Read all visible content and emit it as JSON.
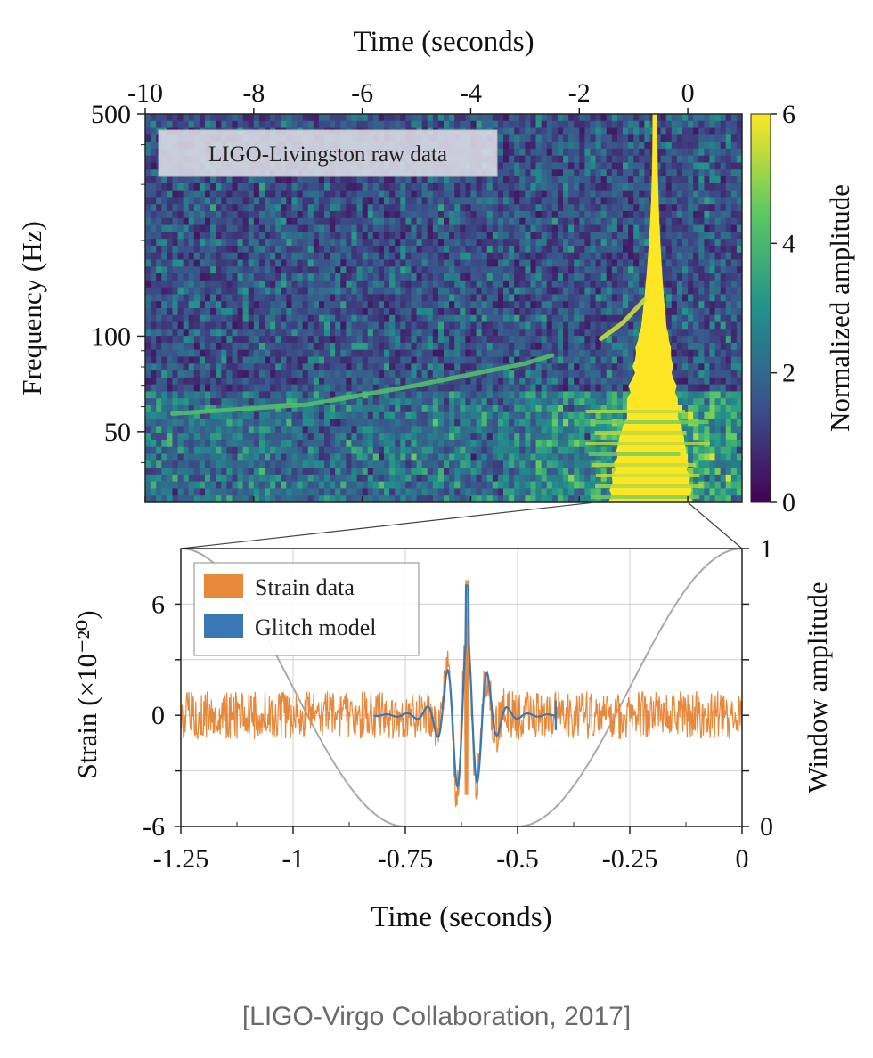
{
  "caption": "[LIGO-Virgo Collaboration, 2017]",
  "chart_data": [
    {
      "type": "heatmap",
      "title": "LIGO-Livingston raw data",
      "xlabel": "Time (seconds)",
      "ylabel": "Frequency (Hz)",
      "xlim": [
        -10,
        1
      ],
      "ylim": [
        30,
        500
      ],
      "yscale": "log",
      "x_ticks": [
        -10,
        -8,
        -6,
        -4,
        -2,
        0
      ],
      "x_tick_labels": [
        "-10",
        "-8",
        "-6",
        "-4",
        "-2",
        "0"
      ],
      "y_ticks": [
        50,
        100,
        500
      ],
      "y_tick_labels": [
        "50",
        "100",
        "500"
      ],
      "colorbar": {
        "label": "Normalized amplitude",
        "range": [
          0,
          6
        ],
        "ticks": [
          0,
          2,
          4,
          6
        ],
        "tick_labels": [
          "0",
          "2",
          "4",
          "6"
        ],
        "colors": [
          "#440154",
          "#3b528b",
          "#21918c",
          "#5ec962",
          "#fde725"
        ]
      },
      "features": [
        {
          "name": "glitch-spike",
          "time": -0.6,
          "freq_range": [
            30,
            500
          ],
          "amplitude": 6
        },
        {
          "name": "chirp-track",
          "points": [
            [
              -9.5,
              57
            ],
            [
              -7,
              61
            ],
            [
              -5,
              70
            ],
            [
              -3,
              82
            ],
            [
              -2.5,
              87
            ]
          ],
          "amplitude": 4.2
        },
        {
          "name": "chirp-tail",
          "points": [
            [
              -1.6,
              98
            ],
            [
              -1.2,
              110
            ],
            [
              -0.8,
              130
            ]
          ],
          "amplitude": 5.5
        }
      ]
    },
    {
      "type": "line",
      "xlabel": "Time (seconds)",
      "ylabel": "Strain (×10⁻²⁰)",
      "y2label": "Window amplitude",
      "xlim": [
        -1.25,
        0
      ],
      "ylim": [
        -6,
        9
      ],
      "y2lim": [
        0,
        1
      ],
      "x_ticks": [
        -1.25,
        -1,
        -0.75,
        -0.5,
        -0.25,
        0
      ],
      "x_tick_labels": [
        "-1.25",
        "-1",
        "-0.75",
        "-0.5",
        "-0.25",
        "0"
      ],
      "y_ticks": [
        -6,
        0,
        6
      ],
      "y_tick_labels": [
        "-6",
        "0",
        "6"
      ],
      "y2_ticks": [
        0,
        1
      ],
      "y2_tick_labels": [
        "0",
        "1"
      ],
      "legend": {
        "position": "top-left",
        "entries": [
          "Strain data",
          "Glitch model"
        ]
      },
      "series": [
        {
          "name": "Strain data",
          "color": "#e8883a",
          "kind": "noise",
          "noise_band": [
            -1.3,
            1.3
          ],
          "burst_center": -0.613,
          "burst_peak": 7.3,
          "burst_trough": -4.3
        },
        {
          "name": "Glitch model",
          "color": "#3a78b5",
          "kind": "wavelet",
          "t_start": -0.82,
          "t_end": -0.415,
          "center": -0.612,
          "peak": 7.0,
          "trough": -4.0
        },
        {
          "name": "Window",
          "color": "#aaaaaa",
          "axis": "y2",
          "kind": "tukey",
          "flat_bottom": [
            -0.75,
            -0.5
          ],
          "edges_at_one": [
            -1.25,
            0
          ]
        }
      ]
    }
  ]
}
